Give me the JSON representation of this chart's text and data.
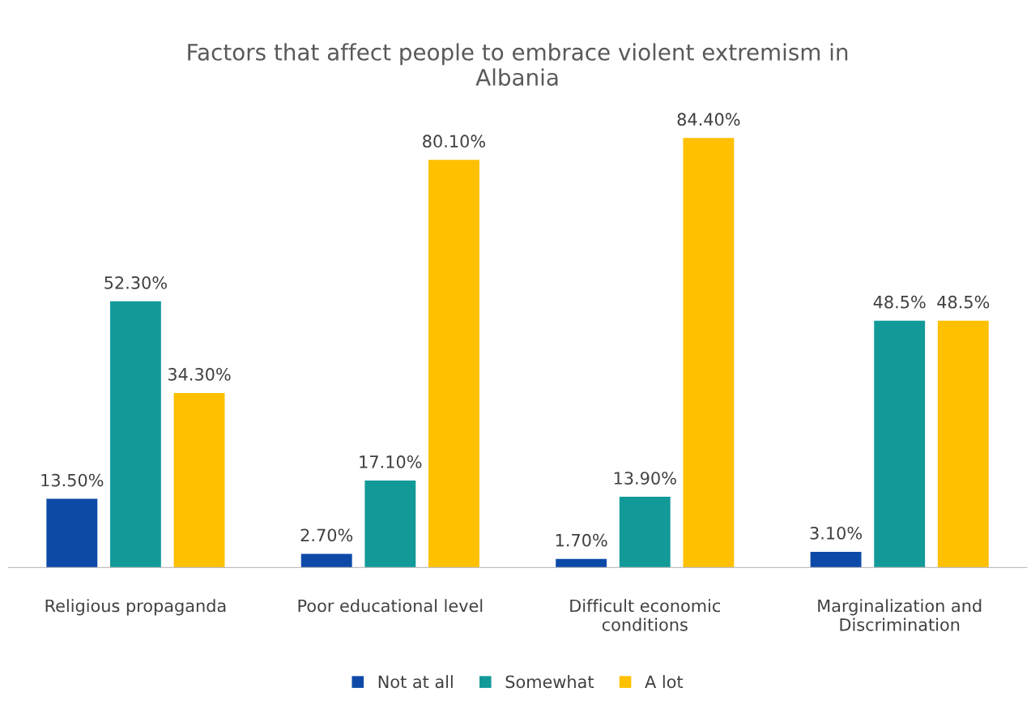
{
  "chart_data": {
    "type": "bar",
    "title": "Factors that affect people to embrace violent extremism in\nAlbania",
    "categories": [
      "Religious propaganda",
      "Poor educational level",
      "Difficult economic\nconditions",
      "Marginalization and\nDiscrimination"
    ],
    "series": [
      {
        "name": "Not at all",
        "color": "#0d4aa8",
        "values": [
          13.5,
          2.7,
          1.7,
          3.1
        ],
        "value_labels": [
          "13.50%",
          "2.70%",
          "1.70%",
          "3.10%"
        ]
      },
      {
        "name": "Somewhat",
        "color": "#129a99",
        "values": [
          52.3,
          17.1,
          13.9,
          48.5
        ],
        "value_labels": [
          "52.30%",
          "17.10%",
          "13.90%",
          "48.5%"
        ]
      },
      {
        "name": "A lot",
        "color": "#ffc000",
        "values": [
          34.3,
          80.1,
          84.4,
          48.5
        ],
        "value_labels": [
          "34.30%",
          "80.10%",
          "84.40%",
          "48.5%"
        ]
      }
    ],
    "tick_labels": "x",
    "grid": false,
    "legend": "bottom"
  }
}
